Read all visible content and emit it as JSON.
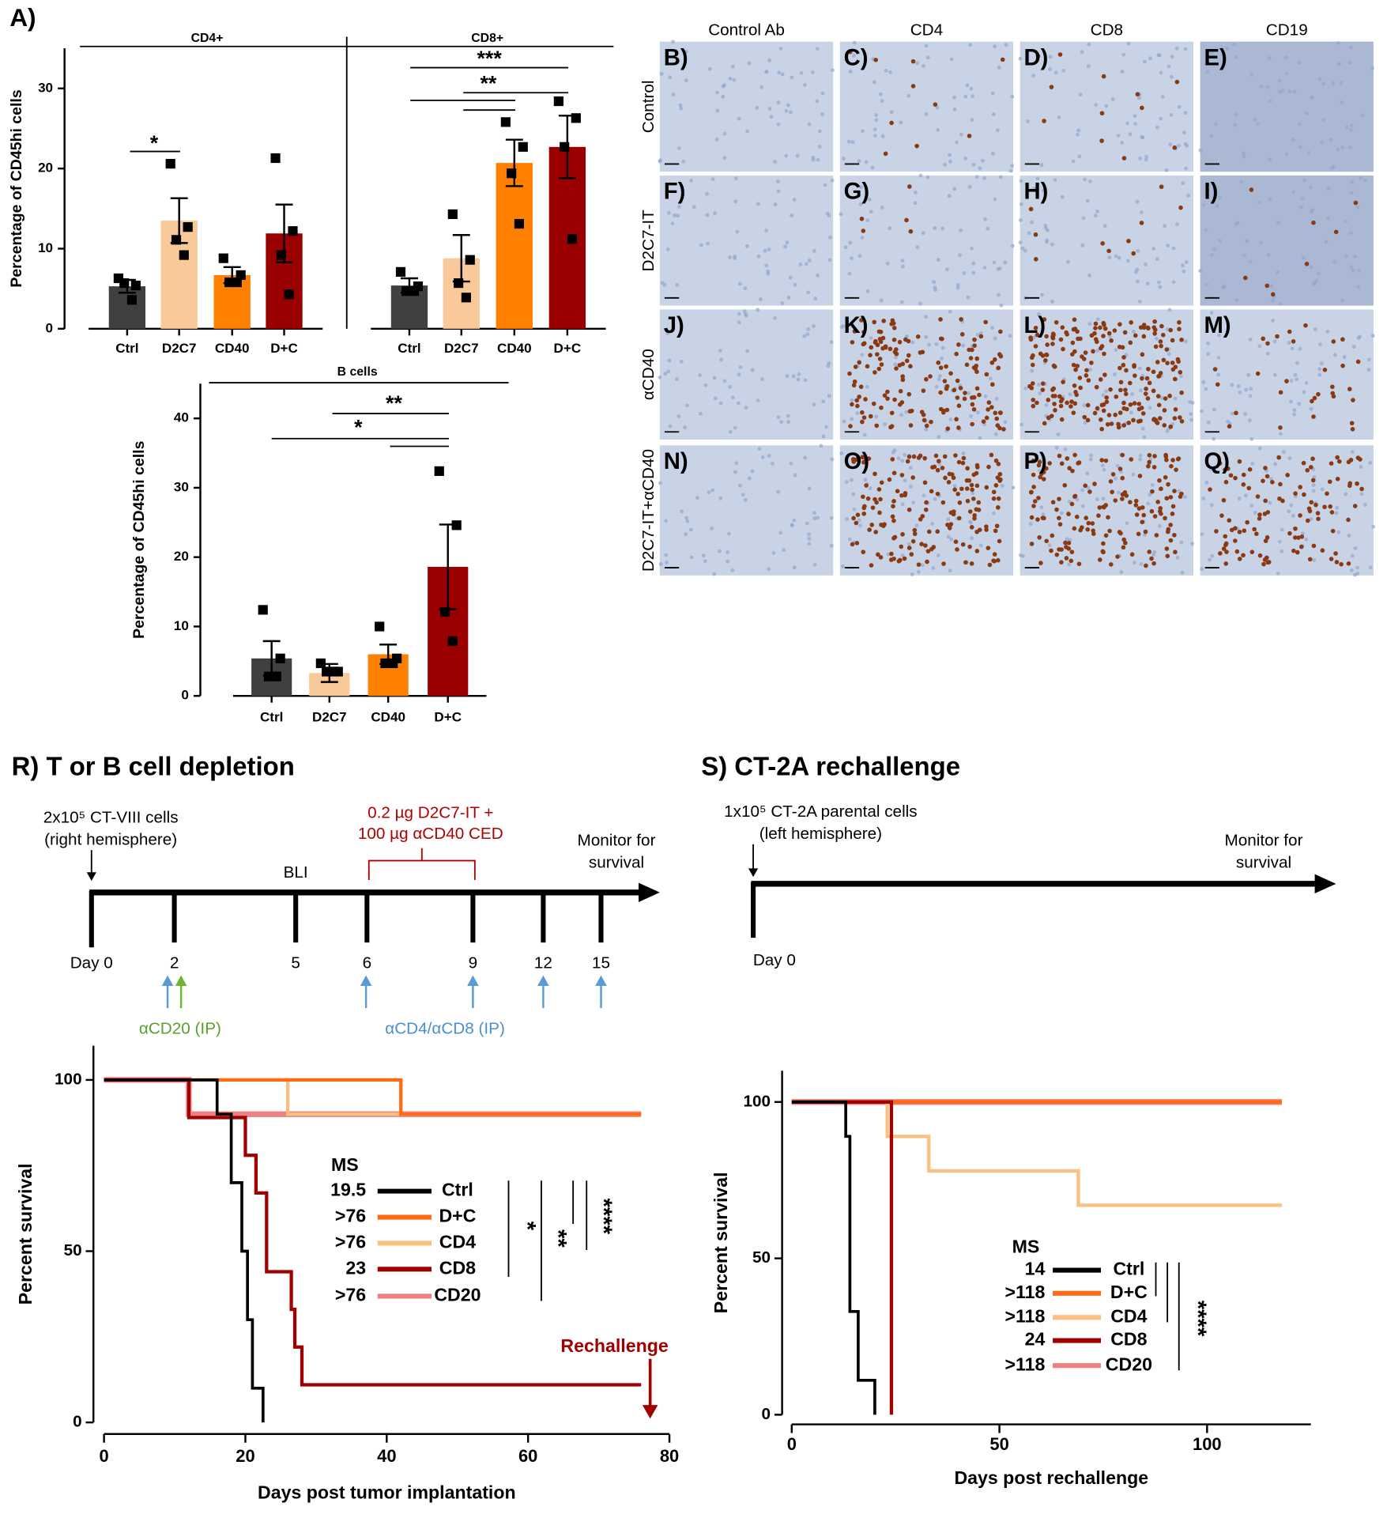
{
  "chart_data": [
    {
      "type": "bar",
      "panel_label": "A)",
      "ylabel": "Percentage of CD45hi cells",
      "ylim": [
        0,
        35
      ],
      "yticks": [
        0,
        10,
        20,
        30
      ],
      "colors": [
        "#404040",
        "#f9c99a",
        "#ff8000",
        "#9b0000"
      ],
      "groups": [
        {
          "title": "CD4+",
          "categories": [
            "Ctrl",
            "D2C7",
            "CD40",
            "D+C"
          ],
          "values": [
            5.3,
            13.5,
            6.7,
            11.9
          ],
          "errors": [
            0.8,
            2.8,
            1.0,
            3.6
          ],
          "points": [
            [
              6.3,
              5.4,
              5.7,
              3.6
            ],
            [
              20.6,
              12.7,
              11.1,
              9.2
            ],
            [
              8.8,
              6.7,
              5.8,
              5.8
            ],
            [
              21.3,
              12.2,
              9.2,
              4.3
            ]
          ],
          "significance": [
            "*"
          ]
        },
        {
          "title": "CD8+",
          "categories": [
            "Ctrl",
            "D2C7",
            "CD40",
            "D+C"
          ],
          "values": [
            5.4,
            8.8,
            20.7,
            22.7
          ],
          "errors": [
            0.9,
            2.9,
            2.9,
            3.9
          ],
          "points": [
            [
              7.1,
              5.3,
              4.7,
              4.7
            ],
            [
              14.3,
              8.6,
              5.7,
              3.9
            ],
            [
              25.8,
              22.7,
              19.4,
              13.1
            ],
            [
              28.4,
              26.3,
              22.7,
              11.2
            ]
          ],
          "significance": [
            "***",
            "**"
          ]
        }
      ]
    },
    {
      "type": "bar",
      "ylabel": "Percentage of CD45hi cells",
      "ylim": [
        0,
        45
      ],
      "yticks": [
        0,
        10,
        20,
        30,
        40
      ],
      "colors": [
        "#404040",
        "#f9c99a",
        "#ff8000",
        "#9b0000"
      ],
      "groups": [
        {
          "title": "B cells",
          "categories": [
            "Ctrl",
            "D2C7",
            "CD40",
            "D+C"
          ],
          "values": [
            5.4,
            3.3,
            6.0,
            18.6
          ],
          "errors": [
            2.5,
            1.3,
            1.4,
            6.1
          ],
          "points": [
            [
              12.4,
              5.4,
              2.8,
              2.8
            ],
            [
              4.7,
              3.5,
              3.5,
              3.5
            ],
            [
              10.0,
              5.4,
              4.7,
              4.7
            ],
            [
              32.4,
              24.6,
              12.1,
              7.9
            ]
          ],
          "significance": [
            "**",
            "*"
          ]
        }
      ]
    },
    {
      "type": "survival",
      "xlabel": "Days post tumor implantation",
      "ylabel": "Percent survival",
      "xlim": [
        0,
        80
      ],
      "xticks": [
        0,
        20,
        40,
        60,
        80
      ],
      "ylim": [
        0,
        110
      ],
      "yticks": [
        0,
        50,
        100
      ],
      "legend_title": "MS",
      "annotation": "Rechallenge",
      "significance": [
        "*",
        "**",
        "****"
      ],
      "series": [
        {
          "name": "Ctrl",
          "ms": "19.5",
          "color": "#000000",
          "x": [
            0,
            16,
            18,
            19.5,
            20.3,
            21,
            22.5
          ],
          "y": [
            100,
            90,
            70,
            50,
            30,
            10,
            0
          ]
        },
        {
          "name": "D+C",
          "ms": ">76",
          "color": "#ff6a13",
          "x": [
            0,
            42,
            76
          ],
          "y": [
            100,
            90,
            90
          ]
        },
        {
          "name": "CD4",
          "ms": ">76",
          "color": "#fbbf7f",
          "x": [
            0,
            26,
            76
          ],
          "y": [
            100,
            90,
            90
          ]
        },
        {
          "name": "CD8",
          "ms": "23",
          "color": "#a00000",
          "x": [
            0,
            12,
            20,
            21.5,
            23,
            26.5,
            27,
            28,
            76
          ],
          "y": [
            100,
            89,
            78,
            67,
            44,
            33,
            22,
            11,
            11
          ]
        },
        {
          "name": "CD20",
          "ms": ">76",
          "color": "#f08080",
          "x": [
            0,
            12,
            76
          ],
          "y": [
            100,
            90,
            90
          ]
        }
      ]
    },
    {
      "type": "survival",
      "xlabel": "Days post rechallenge",
      "ylabel": "Percent survival",
      "xlim": [
        0,
        125
      ],
      "xticks": [
        0,
        50,
        100
      ],
      "ylim": [
        0,
        110
      ],
      "yticks": [
        0,
        50,
        100
      ],
      "legend_title": "MS",
      "significance": [
        "****"
      ],
      "series": [
        {
          "name": "Ctrl",
          "ms": "14",
          "color": "#000000",
          "x": [
            0,
            13,
            14,
            16,
            20
          ],
          "y": [
            100,
            89,
            33,
            11,
            0
          ]
        },
        {
          "name": "D+C",
          "ms": ">118",
          "color": "#ff6a13",
          "x": [
            0,
            118
          ],
          "y": [
            100,
            100
          ]
        },
        {
          "name": "CD4",
          "ms": ">118",
          "color": "#fbbf7f",
          "x": [
            0,
            23,
            33,
            69,
            118
          ],
          "y": [
            100,
            89,
            78,
            67,
            67
          ]
        },
        {
          "name": "CD8",
          "ms": "24",
          "color": "#a00000",
          "x": [
            0,
            24
          ],
          "y": [
            100,
            0
          ]
        },
        {
          "name": "CD20",
          "ms": ">118",
          "color": "#f08080",
          "x": [
            0,
            118
          ],
          "y": [
            100,
            100
          ]
        }
      ]
    }
  ],
  "ihc": {
    "columns": [
      "Control Ab",
      "CD4",
      "CD8",
      "CD19"
    ],
    "rows": [
      "Control",
      "D2C7-IT",
      "αCD40",
      "D2C7-IT+αCD40"
    ],
    "panels": [
      [
        "B)",
        "C)",
        "D)",
        "E)"
      ],
      [
        "F)",
        "G)",
        "H)",
        "I)"
      ],
      [
        "J)",
        "K)",
        "L)",
        "M)"
      ],
      [
        "N)",
        "O)",
        "P)",
        "Q)"
      ]
    ]
  },
  "timelines": [
    {
      "title": "R) T or B cell depletion",
      "cells": [
        "2x10⁵ CT-VIII cells",
        "(right hemisphere)"
      ],
      "imaging": "BLI",
      "treatment": [
        "0.2 µg D2C7-IT +",
        "100 µg αCD40 CED"
      ],
      "monitor": [
        "Monitor for",
        "survival"
      ],
      "days": [
        "Day 0",
        "2",
        "5",
        "6",
        "9",
        "12",
        "15"
      ],
      "cd20": "αCD20 (IP)",
      "cd4cd8": "αCD4/αCD8 (IP)"
    },
    {
      "title": "S) CT-2A rechallenge",
      "cells": [
        "1x10⁵ CT-2A parental cells",
        "(left hemisphere)"
      ],
      "monitor": [
        "Monitor for",
        "survival"
      ],
      "days": [
        "Day 0"
      ]
    }
  ]
}
